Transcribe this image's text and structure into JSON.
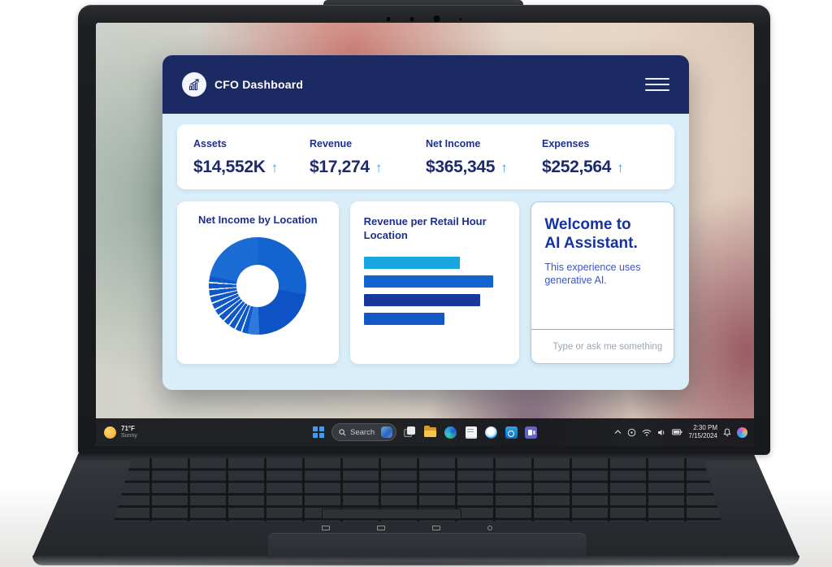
{
  "app": {
    "title": "CFO Dashboard"
  },
  "header": {
    "logo_icon": "bar-chart-growth-icon",
    "menu_icon": "hamburger-menu-icon"
  },
  "ui": {
    "up_arrow": "↑"
  },
  "kpis": [
    {
      "label": "Assets",
      "value": "$14,552K",
      "trend": "up"
    },
    {
      "label": "Revenue",
      "value": "$17,274",
      "trend": "up"
    },
    {
      "label": "Net Income",
      "value": "$365,345",
      "trend": "up"
    },
    {
      "label": "Expenses",
      "value": "$252,564",
      "trend": "up"
    }
  ],
  "cards": {
    "net_income_donut": {
      "title": "Net Income by Location",
      "chart_type": "donut",
      "segments": [
        {
          "color": "#1464d0",
          "deg": 100
        },
        {
          "color": "#0d53c6",
          "deg": 78
        },
        {
          "color": "#2e78de",
          "deg": 14
        },
        {
          "color": "#0e58ca",
          "deg": 6.5
        },
        {
          "color": "#ffffff",
          "deg": 1.8
        },
        {
          "color": "#0e58ca",
          "deg": 6.5
        },
        {
          "color": "#ffffff",
          "deg": 1.8
        },
        {
          "color": "#0e58ca",
          "deg": 6.5
        },
        {
          "color": "#ffffff",
          "deg": 1.8
        },
        {
          "color": "#0e58ca",
          "deg": 6.5
        },
        {
          "color": "#ffffff",
          "deg": 1.8
        },
        {
          "color": "#0e58ca",
          "deg": 6.5
        },
        {
          "color": "#ffffff",
          "deg": 1.8
        },
        {
          "color": "#0e58ca",
          "deg": 6.5
        },
        {
          "color": "#ffffff",
          "deg": 1.8
        },
        {
          "color": "#0e58ca",
          "deg": 6.5
        },
        {
          "color": "#ffffff",
          "deg": 1.8
        },
        {
          "color": "#0e58ca",
          "deg": 6.5
        },
        {
          "color": "#ffffff",
          "deg": 1.8
        },
        {
          "color": "#0e58ca",
          "deg": 6.5
        },
        {
          "color": "#ffffff",
          "deg": 1.8
        },
        {
          "color": "#0e58ca",
          "deg": 6.5
        },
        {
          "color": "#ffffff",
          "deg": 1.8
        },
        {
          "color": "#0e58ca",
          "deg": 6.5
        },
        {
          "color": "#1b6bd4",
          "deg": 78.5
        }
      ]
    },
    "revenue_bars": {
      "title": "Revenue per Retail Hour Location",
      "chart_type": "bar-horizontal",
      "bars": [
        {
          "width_pct": 68,
          "color": "#18a5e0"
        },
        {
          "width_pct": 91,
          "color": "#1464d0"
        },
        {
          "width_pct": 82,
          "color": "#19379b"
        },
        {
          "width_pct": 57,
          "color": "#1457c6"
        }
      ]
    },
    "ai_assistant": {
      "heading_lines": [
        "Welcome to",
        "AI Assistant."
      ],
      "body": "This experience uses generative AI.",
      "input_placeholder": "Type or ask me something",
      "input_icon": "sparkle-icon"
    }
  },
  "taskbar": {
    "weather": {
      "icon": "sun-icon",
      "temp": "71°F",
      "condition": "Sunny"
    },
    "start_icon": "windows-start-icon",
    "search": {
      "icon": "search-icon",
      "placeholder": "Search",
      "right_icon": "bing-icon"
    },
    "app_icons": [
      "task-view-icon",
      "file-explorer-icon",
      "edge-icon",
      "notes-icon",
      "copilot-app-icon",
      "outlook-icon",
      "teams-icon"
    ],
    "tray": {
      "chevron": "chevron-up-icon",
      "icons": [
        "accessibility-icon",
        "wifi-icon",
        "volume-icon",
        "battery-icon"
      ],
      "time": "2:30 PM",
      "date": "7/15/2024",
      "bell": "bell-icon",
      "copilot": "copilot-icon"
    }
  },
  "theme": {
    "header_navy": "#1c2a64",
    "dashboard_bg": "#d9eef9",
    "card_bg": "#ffffff",
    "kpi_text_navy": "#1b2a6e",
    "trend_arrow_blue": "#41a1e8",
    "ai_heading_blue": "#1433a0",
    "taskbar_bg": "#15171b"
  }
}
